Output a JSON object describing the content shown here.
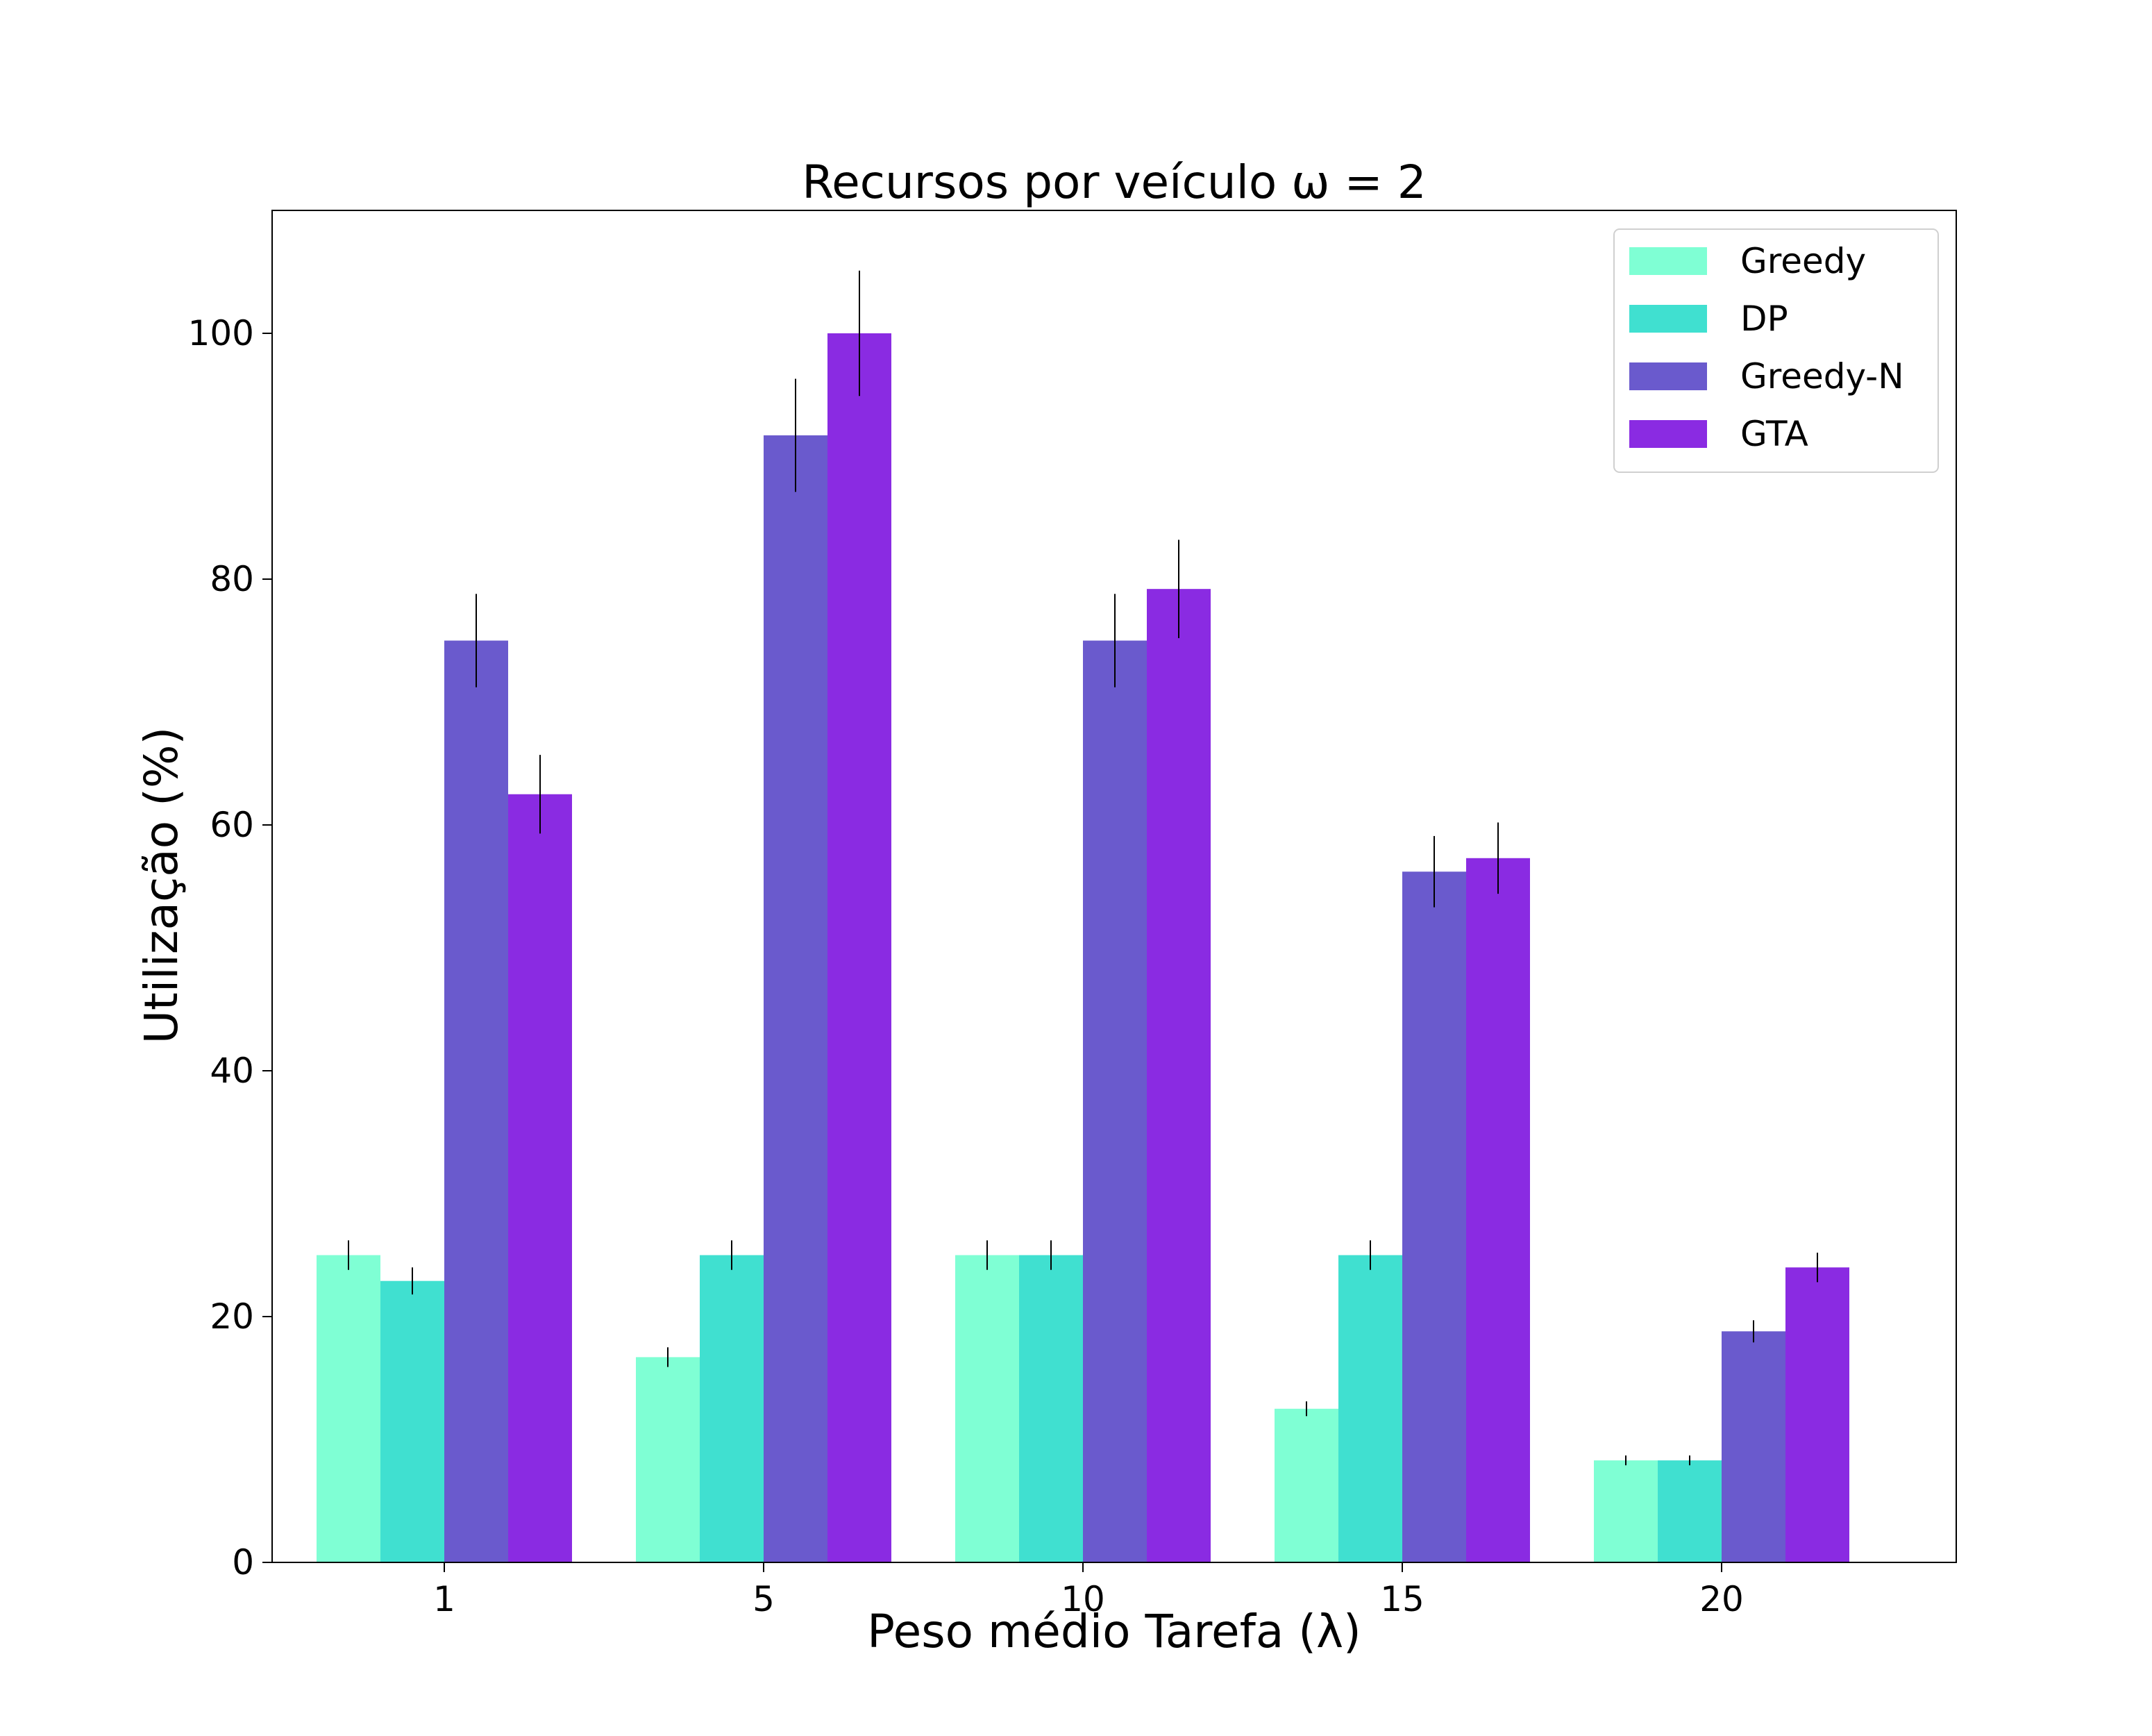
{
  "chart_data": {
    "type": "bar",
    "title": "Recursos por veículo ω = 2",
    "xlabel": "Peso médio Tarefa (λ)",
    "ylabel": "Utilização (%)",
    "categories": [
      "1",
      "5",
      "10",
      "15",
      "20"
    ],
    "ylim": [
      0,
      110
    ],
    "yticks": [
      0,
      20,
      40,
      60,
      80,
      100
    ],
    "grid": false,
    "legend_position": "top-right",
    "series": [
      {
        "name": "Greedy",
        "color": "#7fffd4",
        "values": [
          25.0,
          16.7,
          25.0,
          12.5,
          8.3
        ],
        "errors": [
          1.2,
          0.8,
          1.2,
          0.6,
          0.4
        ]
      },
      {
        "name": "DP",
        "color": "#40e0d0",
        "values": [
          22.9,
          25.0,
          25.0,
          25.0,
          8.3
        ],
        "errors": [
          1.1,
          1.2,
          1.2,
          1.2,
          0.4
        ]
      },
      {
        "name": "Greedy-N",
        "color": "#6a5acd",
        "values": [
          75.0,
          91.7,
          75.0,
          56.2,
          18.8
        ],
        "errors": [
          3.8,
          4.6,
          3.8,
          2.9,
          0.9
        ]
      },
      {
        "name": "GTA",
        "color": "#8a2be2",
        "values": [
          62.5,
          100.0,
          79.2,
          57.3,
          24.0
        ],
        "errors": [
          3.2,
          5.1,
          4.0,
          2.9,
          1.2
        ]
      }
    ]
  }
}
